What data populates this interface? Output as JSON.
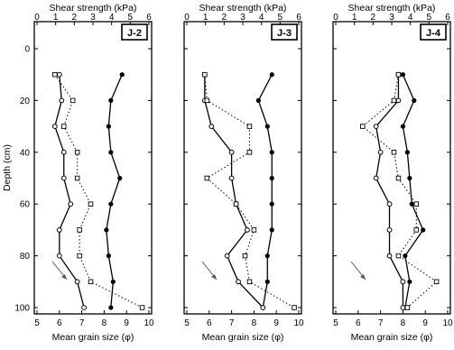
{
  "chart_data": [
    {
      "type": "line",
      "panel_label": "J-2",
      "top_axis_label": "Shear strength (kPa)",
      "bottom_axis_label": "Mean grain size (φ)",
      "y_axis_label": "Depth (cm)",
      "shear_ticks": [
        "0",
        "1",
        "2",
        "3",
        "4",
        "5",
        "6"
      ],
      "grain_ticks": [
        "5",
        "6",
        "7",
        "8",
        "9",
        "10"
      ],
      "depth_ticks": [
        "0",
        "20",
        "40",
        "60",
        "80",
        "100"
      ],
      "ylim": [
        0,
        102
      ],
      "shear_xlim": [
        0,
        6
      ],
      "grain_xlim": [
        5,
        10
      ],
      "series": [
        {
          "style": "solid-filled",
          "axis": "grain",
          "depth": [
            10,
            20,
            30,
            40,
            50,
            60,
            70,
            80,
            90,
            100
          ],
          "x": [
            8.8,
            8.3,
            8.2,
            8.3,
            8.7,
            8.3,
            8.1,
            8.2,
            8.4,
            8.3
          ]
        },
        {
          "style": "solid-open",
          "axis": "grain",
          "depth": [
            10,
            20,
            30,
            40,
            50,
            60,
            70,
            80,
            90,
            100
          ],
          "x": [
            6.0,
            6.1,
            5.8,
            6.2,
            6.2,
            6.5,
            6.0,
            6.0,
            6.8,
            7.1
          ]
        },
        {
          "style": "dotted-open",
          "axis": "grain",
          "depth": [
            10,
            20,
            30,
            40,
            50,
            60,
            70,
            80,
            90,
            100
          ],
          "x": [
            5.8,
            6.6,
            6.2,
            6.8,
            6.8,
            7.4,
            6.9,
            6.9,
            7.4,
            9.7
          ]
        }
      ]
    },
    {
      "type": "line",
      "panel_label": "J-3",
      "top_axis_label": "Shear strength (kPa)",
      "bottom_axis_label": "Mean grain size (φ)",
      "shear_ticks": [
        "0",
        "1",
        "2",
        "3",
        "4",
        "5",
        "6"
      ],
      "grain_ticks": [
        "5",
        "6",
        "7",
        "8",
        "9",
        "10"
      ],
      "ylim": [
        0,
        102
      ],
      "shear_xlim": [
        0,
        6
      ],
      "grain_xlim": [
        5,
        10
      ],
      "series": [
        {
          "style": "solid-filled",
          "axis": "grain",
          "depth": [
            10,
            20,
            30,
            40,
            50,
            60,
            70,
            80,
            90,
            100
          ],
          "x": [
            8.8,
            8.2,
            8.6,
            8.8,
            8.8,
            8.8,
            8.8,
            8.6,
            8.6,
            8.4
          ]
        },
        {
          "style": "solid-open",
          "axis": "grain",
          "depth": [
            10,
            20,
            30,
            40,
            50,
            60,
            70,
            80,
            90,
            100
          ],
          "x": [
            5.8,
            5.8,
            6.1,
            7.0,
            7.0,
            7.2,
            7.7,
            6.8,
            7.3,
            8.4
          ]
        },
        {
          "style": "dotted-open",
          "axis": "grain",
          "depth": [
            10,
            20,
            30,
            40,
            50,
            60,
            70,
            80,
            90,
            100
          ],
          "x": [
            5.8,
            5.9,
            7.8,
            7.8,
            5.9,
            7.2,
            8.0,
            7.6,
            7.8,
            9.8
          ]
        }
      ]
    },
    {
      "type": "line",
      "panel_label": "J-4",
      "top_axis_label": "Shear strength (kPa)",
      "bottom_axis_label": "Mean grain size (φ)",
      "shear_ticks": [
        "0",
        "1",
        "2",
        "3",
        "4",
        "5",
        "6"
      ],
      "grain_ticks": [
        "5",
        "6",
        "7",
        "8",
        "9",
        "10"
      ],
      "ylim": [
        0,
        102
      ],
      "shear_xlim": [
        0,
        6
      ],
      "grain_xlim": [
        5,
        10
      ],
      "series": [
        {
          "style": "solid-filled",
          "axis": "grain",
          "depth": [
            10,
            20,
            30,
            40,
            50,
            60,
            70,
            80,
            90,
            100
          ],
          "x": [
            8.0,
            8.5,
            8.0,
            8.2,
            8.3,
            8.4,
            8.9,
            8.1,
            8.3,
            8.1
          ]
        },
        {
          "style": "solid-open",
          "axis": "grain",
          "depth": [
            10,
            20,
            30,
            40,
            50,
            60,
            70,
            80,
            90,
            100
          ],
          "x": [
            7.8,
            7.8,
            6.8,
            7.0,
            6.8,
            7.4,
            7.4,
            7.4,
            8.0,
            8.0
          ]
        },
        {
          "style": "dotted-open",
          "axis": "grain",
          "depth": [
            10,
            20,
            30,
            40,
            50,
            60,
            70,
            80,
            90,
            100
          ],
          "x": [
            7.8,
            7.6,
            6.2,
            7.6,
            7.8,
            8.6,
            8.6,
            7.8,
            9.5,
            8.2
          ]
        }
      ]
    }
  ]
}
